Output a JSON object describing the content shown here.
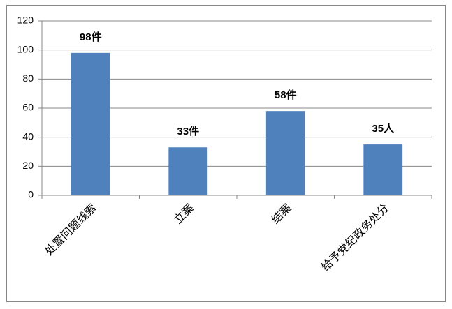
{
  "chart_data": {
    "type": "bar",
    "categories": [
      "处置问题线索",
      "立案",
      "结案",
      "给予党纪政务处分"
    ],
    "values": [
      98,
      33,
      58,
      35
    ],
    "value_labels": [
      "98件",
      "33件",
      "58件",
      "35人"
    ],
    "color": "#4f81bd",
    "ylim": [
      0,
      120
    ],
    "yticks": [
      0,
      20,
      40,
      60,
      80,
      100,
      120
    ],
    "grid": true
  }
}
